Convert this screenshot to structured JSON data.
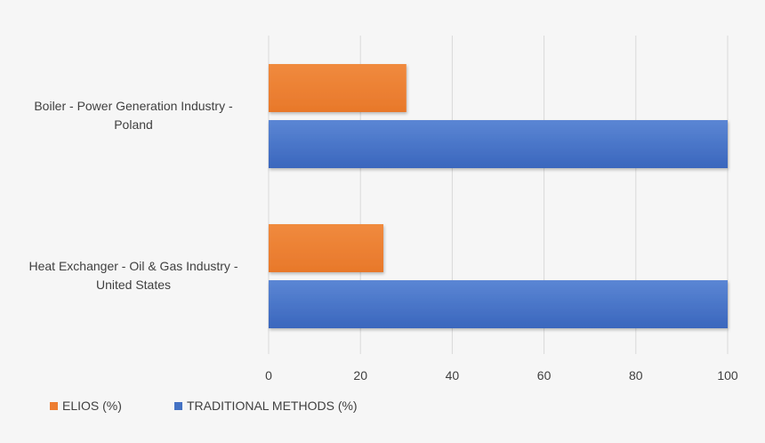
{
  "chart_data": {
    "type": "bar",
    "orientation": "horizontal",
    "categories": [
      "Boiler - Power Generation Industry - Poland",
      "Heat Exchanger - Oil & Gas Industry - United States"
    ],
    "category_lines": [
      [
        "Boiler - Power Generation Industry -",
        "Poland"
      ],
      [
        "Heat Exchanger - Oil & Gas Industry -",
        "United States"
      ]
    ],
    "series": [
      {
        "name": "ELIOS (%)",
        "values": [
          30,
          25
        ],
        "color": "#ed7d31"
      },
      {
        "name": "TRADITIONAL METHODS (%)",
        "values": [
          100,
          100
        ],
        "color": "#4472c4"
      }
    ],
    "xlim": [
      0,
      100
    ],
    "xticks": [
      "0",
      "20",
      "40",
      "60",
      "80",
      "100"
    ],
    "grid": true,
    "legend_position": "bottom-left"
  }
}
